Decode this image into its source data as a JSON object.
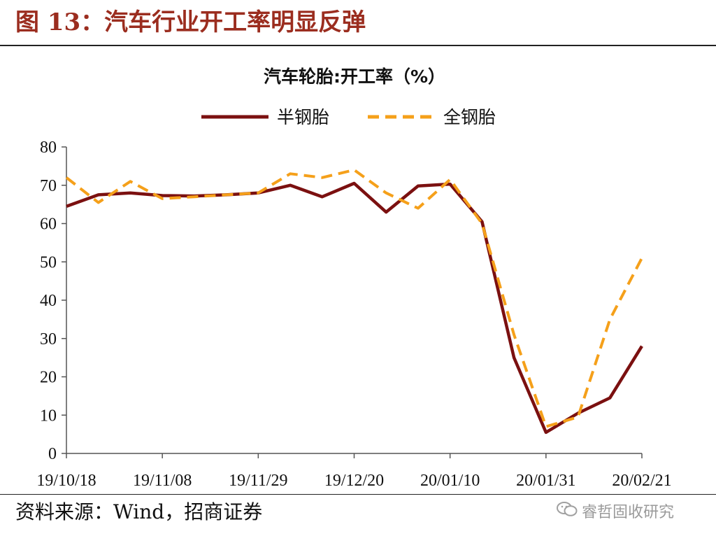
{
  "figure": {
    "title": "图 13：汽车行业开工率明显反弹",
    "source": "资料来源：Wind，招商证券",
    "watermark": "睿哲固收研究"
  },
  "colors": {
    "title": "#9b2d1f",
    "series_semi": "#7b1010",
    "series_full": "#f5a01a",
    "axis": "#555555"
  },
  "chart_data": {
    "type": "line",
    "title": "汽车轮胎:开工率（%）",
    "xlabel": "",
    "ylabel": "",
    "ylim": [
      0,
      80
    ],
    "yticks": [
      0,
      10,
      20,
      30,
      40,
      50,
      60,
      70,
      80
    ],
    "x": [
      "19/10/18",
      "19/10/25",
      "19/11/01",
      "19/11/08",
      "19/11/15",
      "19/11/22",
      "19/11/29",
      "19/12/06",
      "19/12/13",
      "19/12/20",
      "19/12/27",
      "20/01/03",
      "20/01/10",
      "20/01/17",
      "20/01/24",
      "20/01/31",
      "20/02/07",
      "20/02/14",
      "20/02/21"
    ],
    "xtick_labels": [
      "19/10/18",
      "19/11/08",
      "19/11/29",
      "19/12/20",
      "20/01/10",
      "20/01/31",
      "20/02/21"
    ],
    "legend_position": "top-center",
    "grid": false,
    "series": [
      {
        "name": "半钢胎",
        "style": "solid",
        "values": [
          64.5,
          67.5,
          68.0,
          67.3,
          67.2,
          67.5,
          68.0,
          70.0,
          67.0,
          70.5,
          63.0,
          69.8,
          70.3,
          60.5,
          25.0,
          5.5,
          10.5,
          14.5,
          28.0
        ]
      },
      {
        "name": "全钢胎",
        "style": "dashed",
        "values": [
          72.0,
          65.5,
          71.0,
          66.5,
          67.0,
          67.5,
          68.0,
          73.0,
          72.0,
          74.0,
          68.0,
          64.0,
          71.5,
          60.0,
          31.0,
          7.0,
          9.5,
          35.0,
          51.0
        ]
      }
    ]
  }
}
